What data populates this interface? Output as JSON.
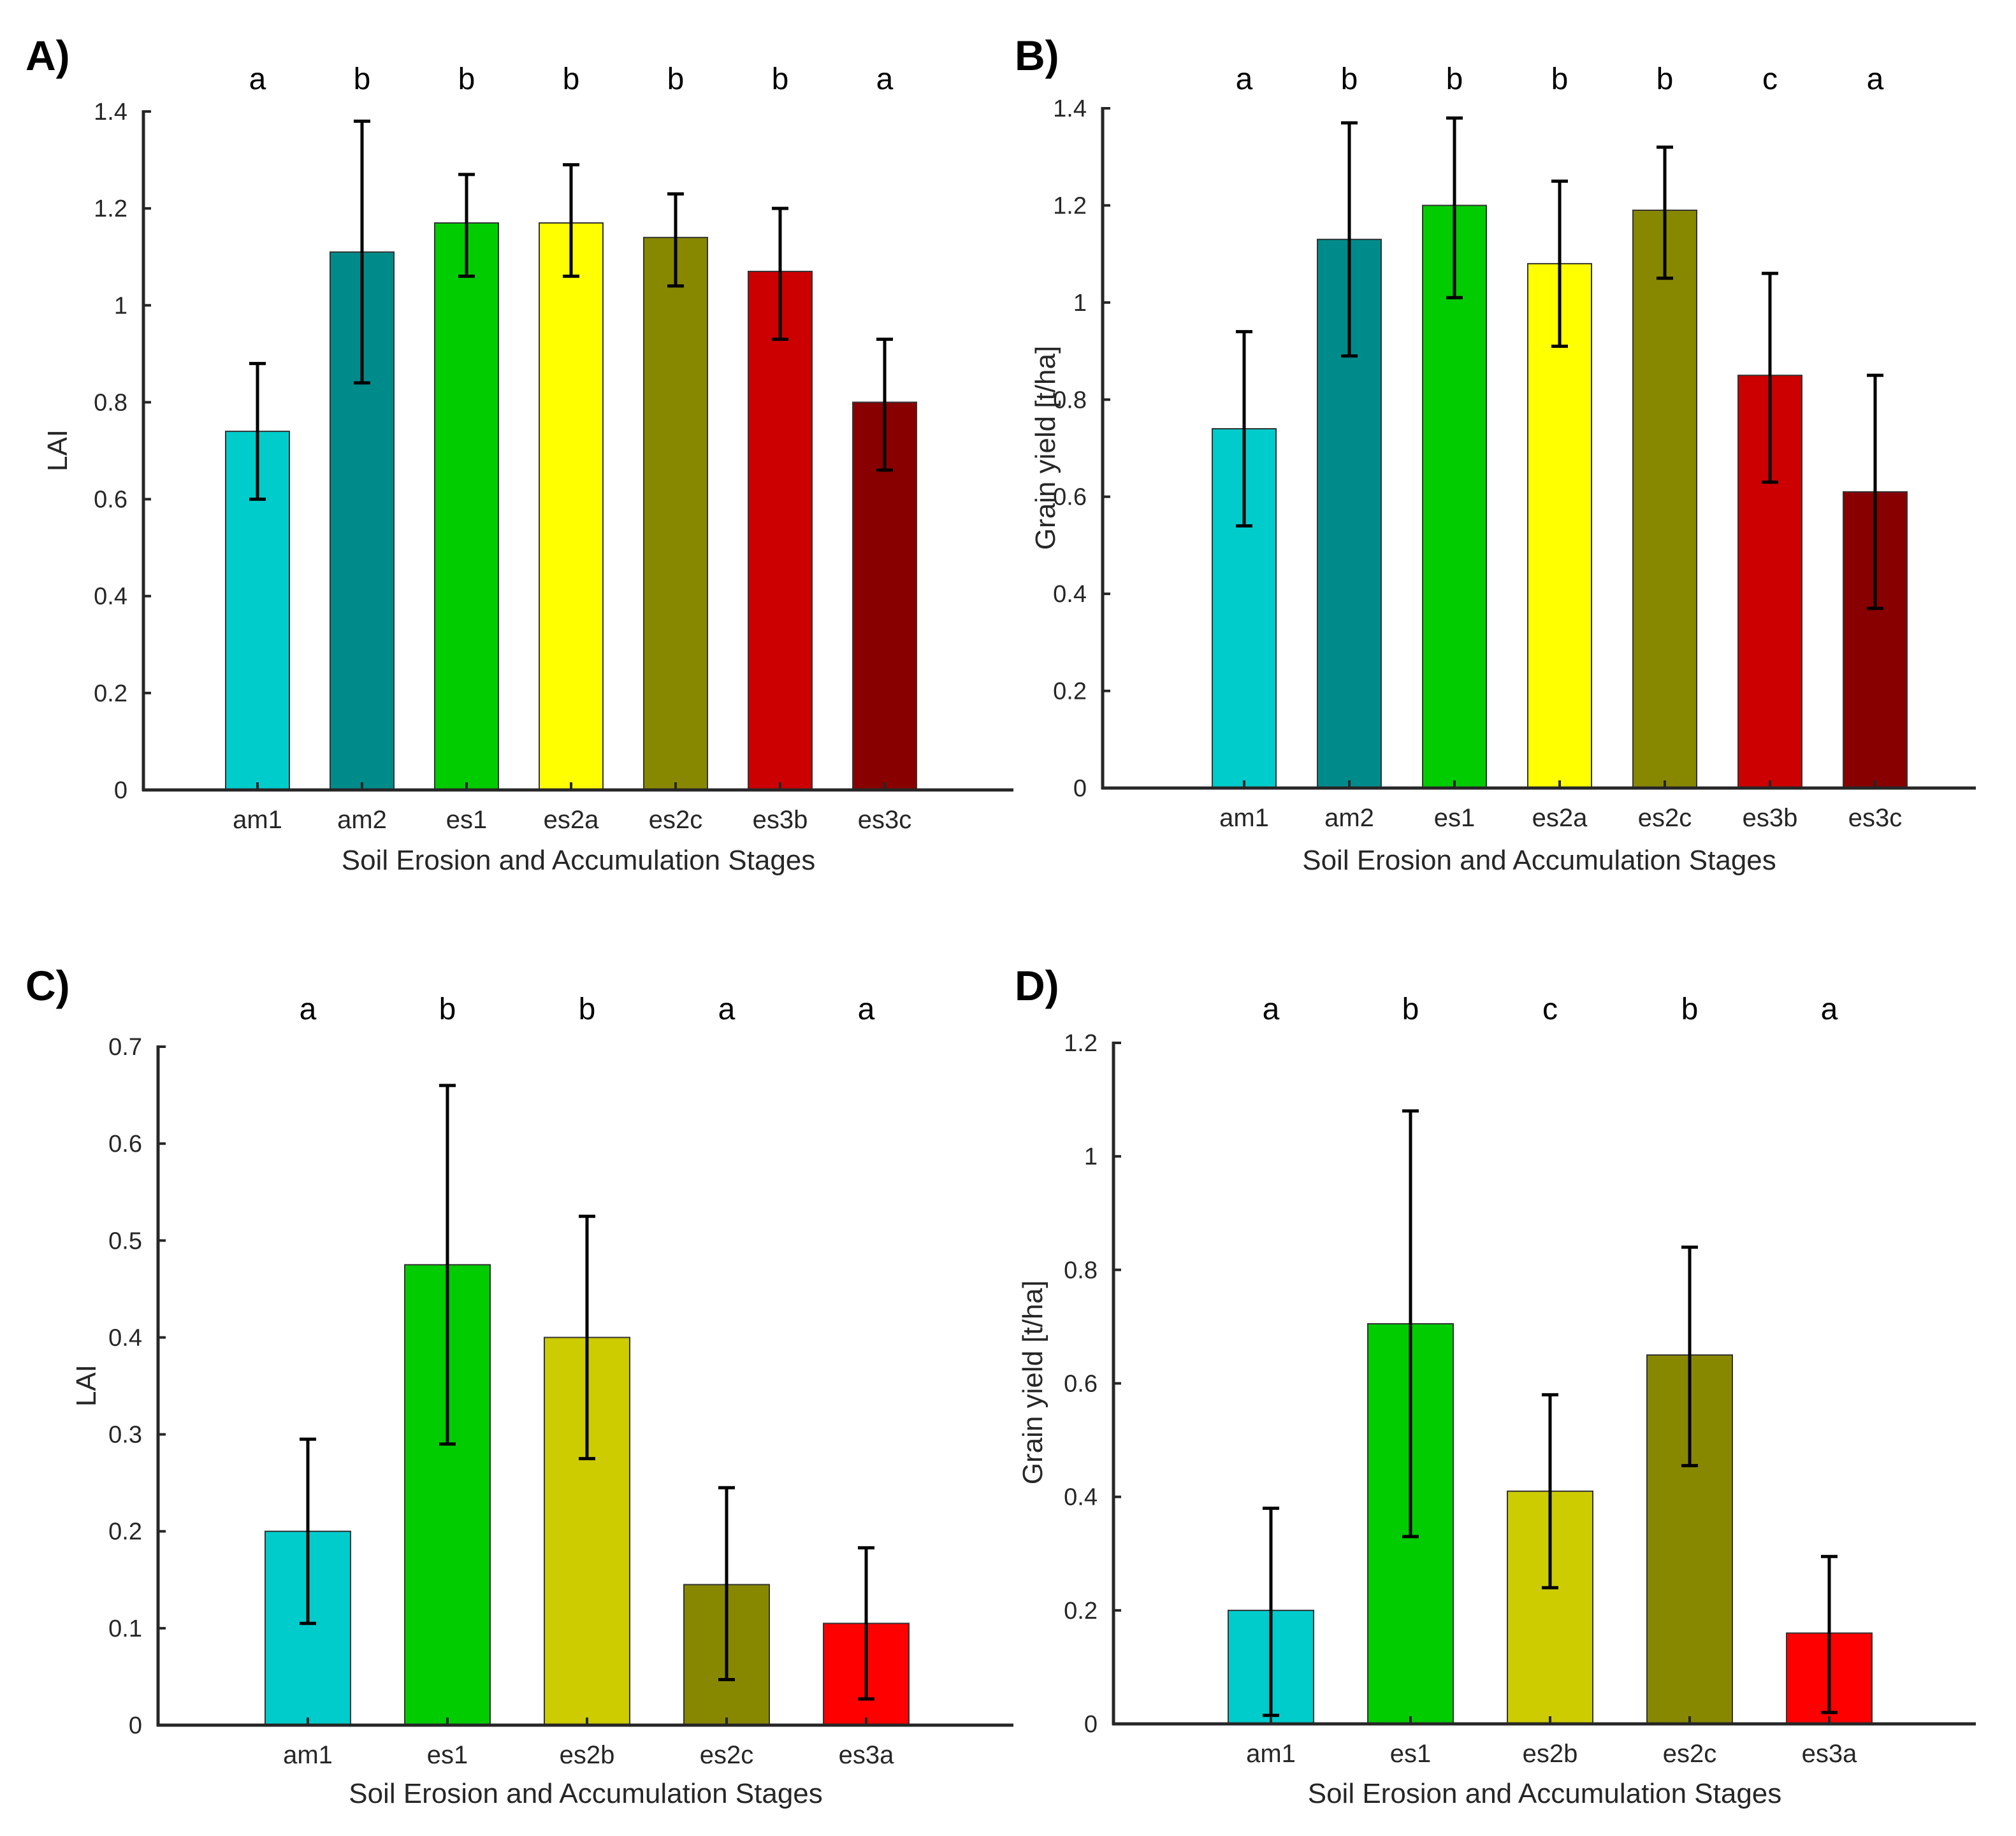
{
  "chart_data": [
    {
      "panel": "A)",
      "type": "bar",
      "categories": [
        "am1",
        "am2",
        "es1",
        "es2a",
        "es2c",
        "es3b",
        "es3c"
      ],
      "values": [
        0.74,
        1.11,
        1.17,
        1.17,
        1.14,
        1.07,
        0.8
      ],
      "errors_low": [
        0.6,
        0.84,
        1.06,
        1.06,
        1.04,
        0.93,
        0.66
      ],
      "errors_high": [
        0.88,
        1.38,
        1.27,
        1.29,
        1.23,
        1.2,
        0.93
      ],
      "letters": [
        "a",
        "b",
        "b",
        "b",
        "b",
        "b",
        "a"
      ],
      "colors": [
        "#00CCCC",
        "#008B8B",
        "#00CC00",
        "#FFFF00",
        "#888800",
        "#CC0000",
        "#880000"
      ],
      "xlabel": "Soil Erosion and Accumulation Stages",
      "ylabel": "LAI",
      "ylim": [
        0,
        1.4
      ],
      "yticks": [
        0,
        0.2,
        0.4,
        0.6,
        0.8,
        1,
        1.2,
        1.4
      ],
      "yticklabels": [
        "0",
        "0.2",
        "0.4",
        "0.6",
        "0.8",
        "1",
        "1.2",
        "1.4"
      ]
    },
    {
      "panel": "B)",
      "type": "bar",
      "categories": [
        "am1",
        "am2",
        "es1",
        "es2a",
        "es2c",
        "es3b",
        "es3c"
      ],
      "values": [
        0.74,
        1.13,
        1.2,
        1.08,
        1.19,
        0.85,
        0.61
      ],
      "errors_low": [
        0.54,
        0.89,
        1.01,
        0.91,
        1.05,
        0.63,
        0.37
      ],
      "errors_high": [
        0.94,
        1.37,
        1.38,
        1.25,
        1.32,
        1.06,
        0.85
      ],
      "letters": [
        "a",
        "b",
        "b",
        "b",
        "b",
        "c",
        "a"
      ],
      "colors": [
        "#00CCCC",
        "#008B8B",
        "#00CC00",
        "#FFFF00",
        "#888800",
        "#CC0000",
        "#880000"
      ],
      "xlabel": "Soil Erosion and Accumulation Stages",
      "ylabel": "Grain yield [t/ha]",
      "ylim": [
        0,
        1.4
      ],
      "yticks": [
        0,
        0.2,
        0.4,
        0.6,
        0.8,
        1,
        1.2,
        1.4
      ],
      "yticklabels": [
        "0",
        "0.2",
        "0.4",
        "0.6",
        "0.8",
        "1",
        "1.2",
        "1.4"
      ]
    },
    {
      "panel": "C)",
      "type": "bar",
      "categories": [
        "am1",
        "es1",
        "es2b",
        "es2c",
        "es3a"
      ],
      "values": [
        0.2,
        0.475,
        0.4,
        0.145,
        0.105
      ],
      "errors_low": [
        0.105,
        0.29,
        0.275,
        0.047,
        0.027
      ],
      "errors_high": [
        0.295,
        0.66,
        0.525,
        0.245,
        0.183
      ],
      "letters": [
        "a",
        "b",
        "b",
        "a",
        "a"
      ],
      "colors": [
        "#00CCCC",
        "#00CC00",
        "#CCCC00",
        "#888800",
        "#FF0000"
      ],
      "xlabel": "Soil Erosion and Accumulation Stages",
      "ylabel": "LAI",
      "ylim": [
        0,
        0.7
      ],
      "yticks": [
        0,
        0.1,
        0.2,
        0.3,
        0.4,
        0.5,
        0.6,
        0.7
      ],
      "yticklabels": [
        "0",
        "0.1",
        "0.2",
        "0.3",
        "0.4",
        "0.5",
        "0.6",
        "0.7"
      ]
    },
    {
      "panel": "D)",
      "type": "bar",
      "categories": [
        "am1",
        "es1",
        "es2b",
        "es2c",
        "es3a"
      ],
      "values": [
        0.2,
        0.705,
        0.41,
        0.65,
        0.16
      ],
      "errors_low": [
        0.015,
        0.33,
        0.24,
        0.455,
        0.02
      ],
      "errors_high": [
        0.38,
        1.08,
        0.58,
        0.84,
        0.295
      ],
      "letters": [
        "a",
        "b",
        "c",
        "b",
        "a"
      ],
      "colors": [
        "#00CCCC",
        "#00CC00",
        "#CCCC00",
        "#888800",
        "#FF0000"
      ],
      "xlabel": "Soil Erosion and Accumulation Stages",
      "ylabel": "Grain yield [t/ha]",
      "ylim": [
        0,
        1.2
      ],
      "yticks": [
        0,
        0.2,
        0.4,
        0.6,
        0.8,
        1,
        1.2
      ],
      "yticklabels": [
        "0",
        "0.2",
        "0.4",
        "0.6",
        "0.8",
        "1",
        "1.2"
      ]
    }
  ]
}
